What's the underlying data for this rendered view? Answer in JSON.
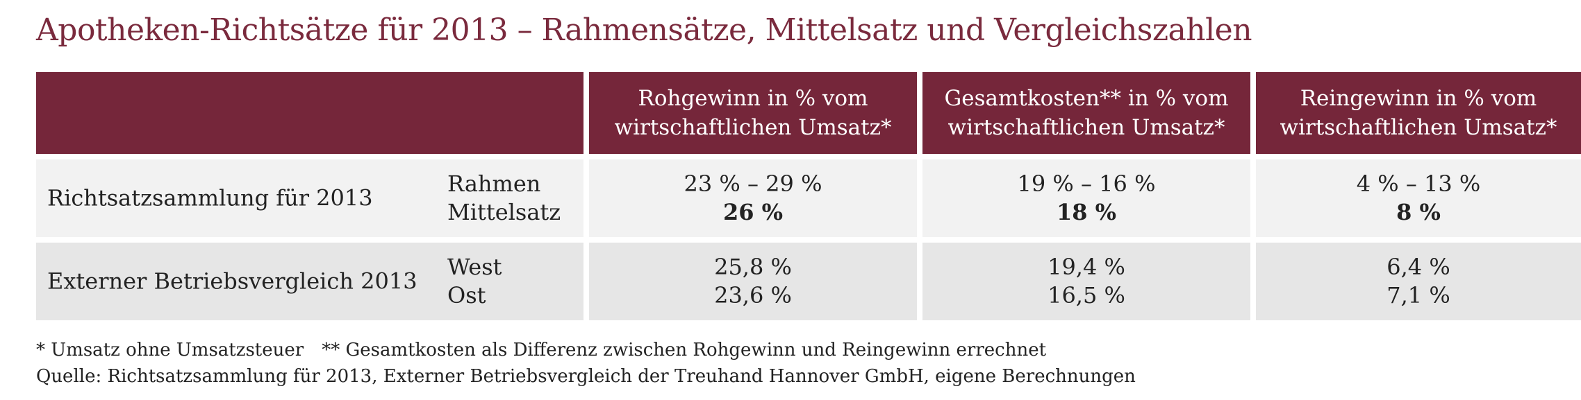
{
  "title": "Apotheken-Richtsätze für 2013 – Rahmensätze, Mittelsatz und Vergleichszahlen",
  "header": {
    "col1": [
      "Rohgewinn in % vom",
      "wirtschaftlichen Umsatz*"
    ],
    "col2": [
      "Gesamtkosten** in % vom",
      "wirtschaftlichen Umsatz*"
    ],
    "col3": [
      "Reingewinn in % vom",
      "wirtschaftlichen Umsatz*"
    ]
  },
  "rows": [
    {
      "label": "Richtsatzsammlung für 2013",
      "sub": [
        "Rahmen",
        "Mittelsatz"
      ],
      "col1": [
        "23 % – 29 %",
        "26 %"
      ],
      "col2": [
        "19 % – 16 %",
        "18 %"
      ],
      "col3": [
        "4 % – 13 %",
        "8 %"
      ]
    },
    {
      "label": "Externer Betriebsvergleich 2013",
      "sub": [
        "West",
        "Ost"
      ],
      "col1": [
        "25,8 %",
        "23,6 %"
      ],
      "col2": [
        "19,4 %",
        "16,5 %"
      ],
      "col3": [
        "6,4 %",
        "7,1 %"
      ]
    }
  ],
  "notes": {
    "note1": "* Umsatz ohne Umsatzsteuer",
    "note2": "** Gesamtkosten als Differenz zwischen Rohgewinn und Reingewinn errechnet",
    "source": "Quelle: Richtsatzsammlung für 2013, Externer Betriebsvergleich der Treuhand Hannover GmbH, eigene Berechnungen"
  },
  "colors": {
    "title": "#7a2a3d",
    "header_bg": "#75263a",
    "row1_bg": "#f2f2f2",
    "row2_bg": "#e6e6e6"
  }
}
